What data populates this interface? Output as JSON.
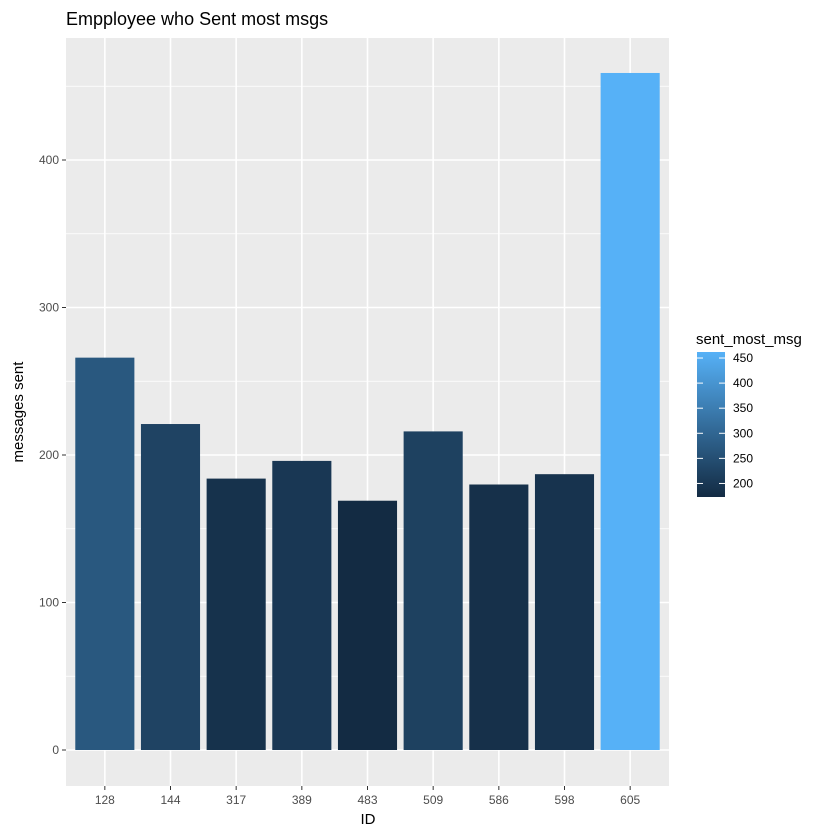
{
  "chart_data": {
    "type": "bar",
    "title": "Empployee who Sent most msgs",
    "xlabel": "ID",
    "ylabel": "messages sent",
    "categories": [
      "128",
      "144",
      "317",
      "389",
      "483",
      "509",
      "586",
      "598",
      "605"
    ],
    "values": [
      266,
      221,
      184,
      196,
      169,
      216,
      180,
      187,
      459
    ],
    "ylim": [
      0,
      480
    ],
    "yticks": [
      0,
      100,
      200,
      300,
      400
    ],
    "grid": true,
    "legend": {
      "title": "sent_most_msg",
      "placement": "right",
      "type": "colorbar",
      "ticks": [
        200,
        250,
        300,
        350,
        400,
        450
      ],
      "range": [
        169,
        459
      ],
      "color_low": "#132B43",
      "color_high": "#56B1F7"
    },
    "colors": {
      "panel_background": "#EBEBEB",
      "grid": "#FFFFFF",
      "low": "#132B43",
      "high": "#56B1F7"
    }
  }
}
